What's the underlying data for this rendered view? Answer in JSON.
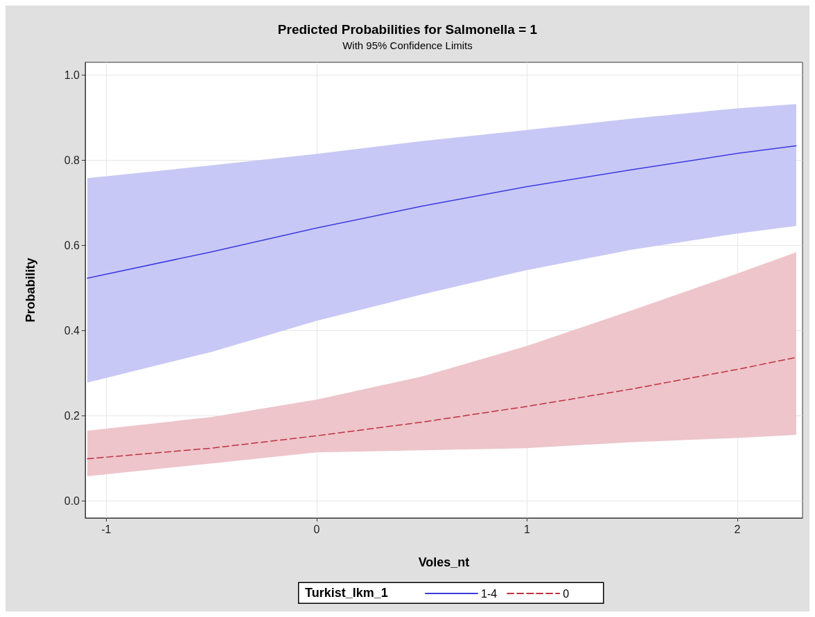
{
  "chart_data": {
    "type": "line",
    "title": "Predicted Probabilities for Salmonella = 1",
    "subtitle": "With 95% Confidence Limits",
    "xlabel": "Voles_nt",
    "ylabel": "Probability",
    "legend_title": "Turkist_lkm_1",
    "x": [
      -1.09,
      -0.5,
      0,
      0.5,
      1,
      1.5,
      2,
      2.28
    ],
    "series": [
      {
        "name": "1-4",
        "color": "#3a3ae0",
        "line_style": "solid",
        "values": [
          0.523,
          0.585,
          0.641,
          0.692,
          0.738,
          0.778,
          0.816,
          0.834
        ],
        "lower": [
          0.278,
          0.35,
          0.423,
          0.485,
          0.542,
          0.59,
          0.628,
          0.646
        ],
        "upper": [
          0.758,
          0.788,
          0.815,
          0.845,
          0.871,
          0.898,
          0.922,
          0.932
        ]
      },
      {
        "name": "0",
        "color": "#c03040",
        "line_style": "dashed",
        "values": [
          0.099,
          0.124,
          0.153,
          0.185,
          0.222,
          0.263,
          0.309,
          0.337
        ],
        "lower": [
          0.058,
          0.088,
          0.114,
          0.119,
          0.124,
          0.138,
          0.148,
          0.155
        ],
        "upper": [
          0.165,
          0.197,
          0.238,
          0.292,
          0.364,
          0.448,
          0.534,
          0.584
        ]
      }
    ],
    "xlim": [
      -1.1,
      2.31
    ],
    "xticks": [
      -1,
      0,
      1,
      2
    ],
    "ylim": [
      -0.04,
      1.03
    ],
    "yticks": [
      {
        "value": 0,
        "label": "0.0"
      },
      0.2,
      0.4,
      0.6,
      0.8,
      {
        "value": 1,
        "label": "1.0"
      }
    ],
    "grid": true,
    "legend": "bottom",
    "marker": "none"
  }
}
